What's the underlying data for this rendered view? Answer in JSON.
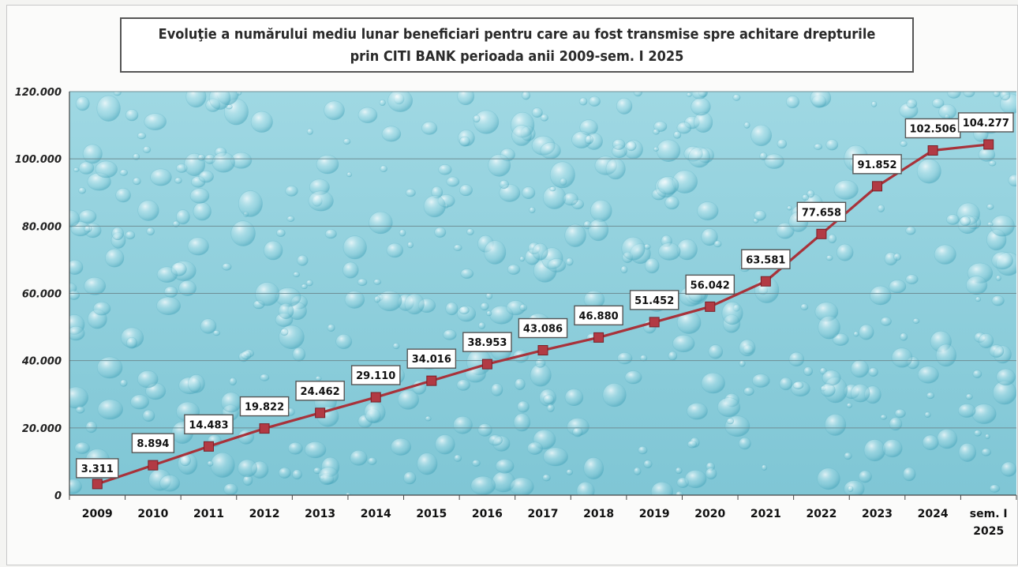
{
  "chart_data": {
    "type": "line",
    "title_line1": "Evoluţie a numărului mediu lunar beneficiari pentru care au fost transmise spre achitare drepturile",
    "title_line2": "prin CITI BANK  perioada anii 2009-sem. I 2025",
    "categories": [
      "2009",
      "2010",
      "2011",
      "2012",
      "2013",
      "2014",
      "2015",
      "2016",
      "2017",
      "2018",
      "2019",
      "2020",
      "2021",
      "2022",
      "2023",
      "2024",
      "sem. I|2025"
    ],
    "values": [
      3311,
      8894,
      14483,
      19822,
      24462,
      29110,
      34016,
      38953,
      43086,
      46880,
      51452,
      56042,
      63581,
      77658,
      91852,
      102506,
      104277
    ],
    "data_labels": [
      "3.311",
      "8.894",
      "14.483",
      "19.822",
      "24.462",
      "29.110",
      "34.016",
      "38.953",
      "43.086",
      "46.880",
      "51.452",
      "56.042",
      "63.581",
      "77.658",
      "91.852",
      "102.506",
      "104.277"
    ],
    "y_ticks": [
      "0",
      "20.000",
      "40.000",
      "60.000",
      "80.000",
      "100.000",
      "120.000"
    ],
    "ylim": [
      0,
      120000
    ],
    "grid": true,
    "legend": "none",
    "colors": {
      "line": "#a8323a",
      "marker": "#b23a44",
      "plot_bg": "#8fd0dc"
    }
  }
}
